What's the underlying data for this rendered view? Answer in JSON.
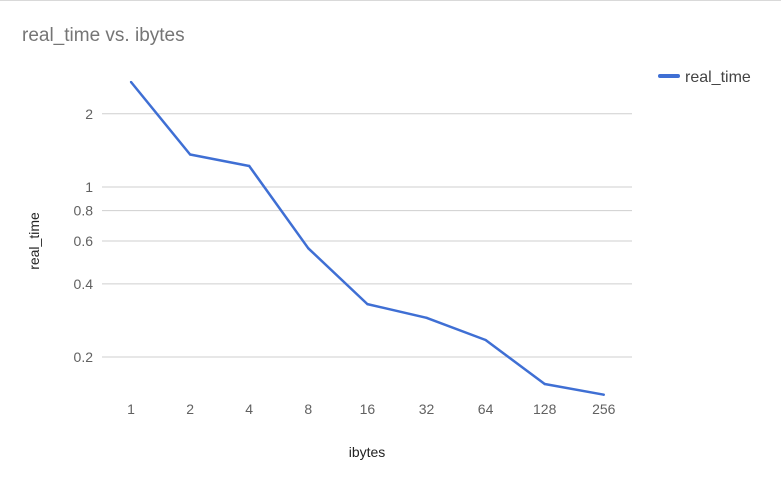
{
  "chart_data": {
    "type": "line",
    "title": "real_time vs. ibytes",
    "xlabel": "ibytes",
    "ylabel": "real_time",
    "x_scale": "log2",
    "y_scale": "log",
    "categories": [
      "1",
      "2",
      "4",
      "8",
      "16",
      "32",
      "64",
      "128",
      "256"
    ],
    "series": [
      {
        "name": "real_time",
        "color": "#3f6fd4",
        "values": [
          2.7,
          1.36,
          1.22,
          0.56,
          0.33,
          0.29,
          0.235,
          0.155,
          0.14
        ]
      }
    ],
    "y_ticks": [
      0.2,
      0.4,
      0.6,
      0.8,
      1,
      2
    ],
    "y_tick_labels": [
      "0.2",
      "0.4",
      "0.6",
      "0.8",
      "1",
      "2"
    ],
    "ylim": [
      0.13,
      3.0
    ],
    "grid": true,
    "legend_position": "top-right"
  }
}
